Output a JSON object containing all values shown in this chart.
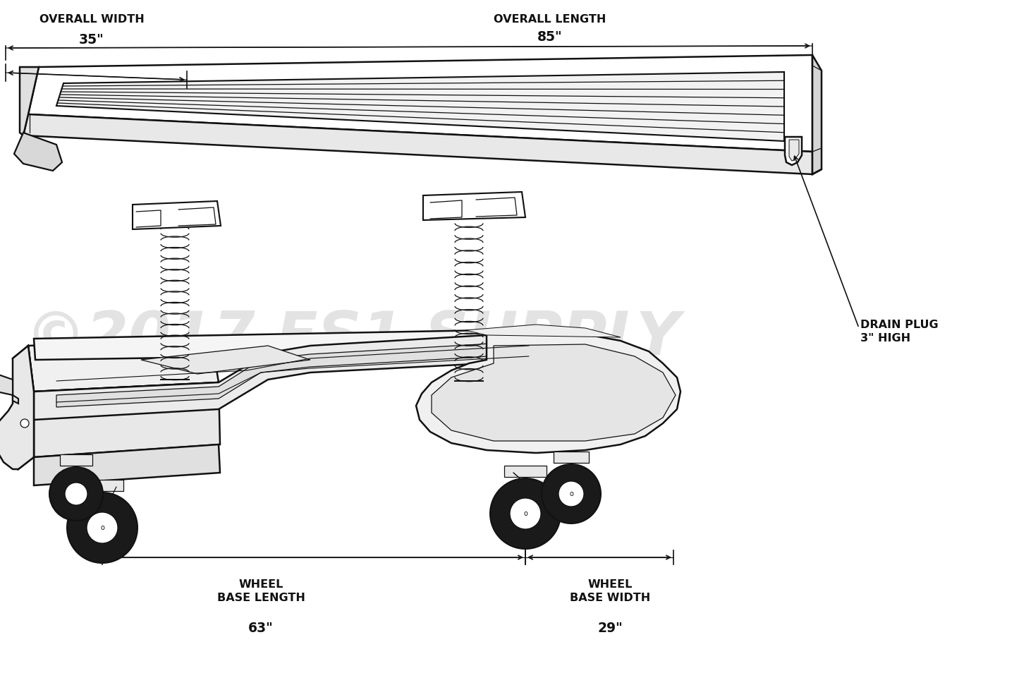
{
  "bg_color": "#ffffff",
  "line_color": "#111111",
  "watermark_color": "#c8c8c8",
  "watermark_text": "©2017 FS1 SUPPLY",
  "dim_overall_width_label": "OVERALL WIDTH",
  "dim_overall_width_val": "35\"",
  "dim_overall_length_label": "OVERALL LENGTH",
  "dim_overall_length_val": "85\"",
  "dim_wbl_label": "WHEEL\nBASE LENGTH",
  "dim_wbl_val": "63\"",
  "dim_wbw_label": "WHEEL\nBASE WIDTH",
  "dim_wbw_val": "29\"",
  "dim_drain_label": "DRAIN PLUG\n3\" HIGH",
  "lw_main": 1.8,
  "lw_thin": 0.9,
  "lw_dim": 1.2
}
